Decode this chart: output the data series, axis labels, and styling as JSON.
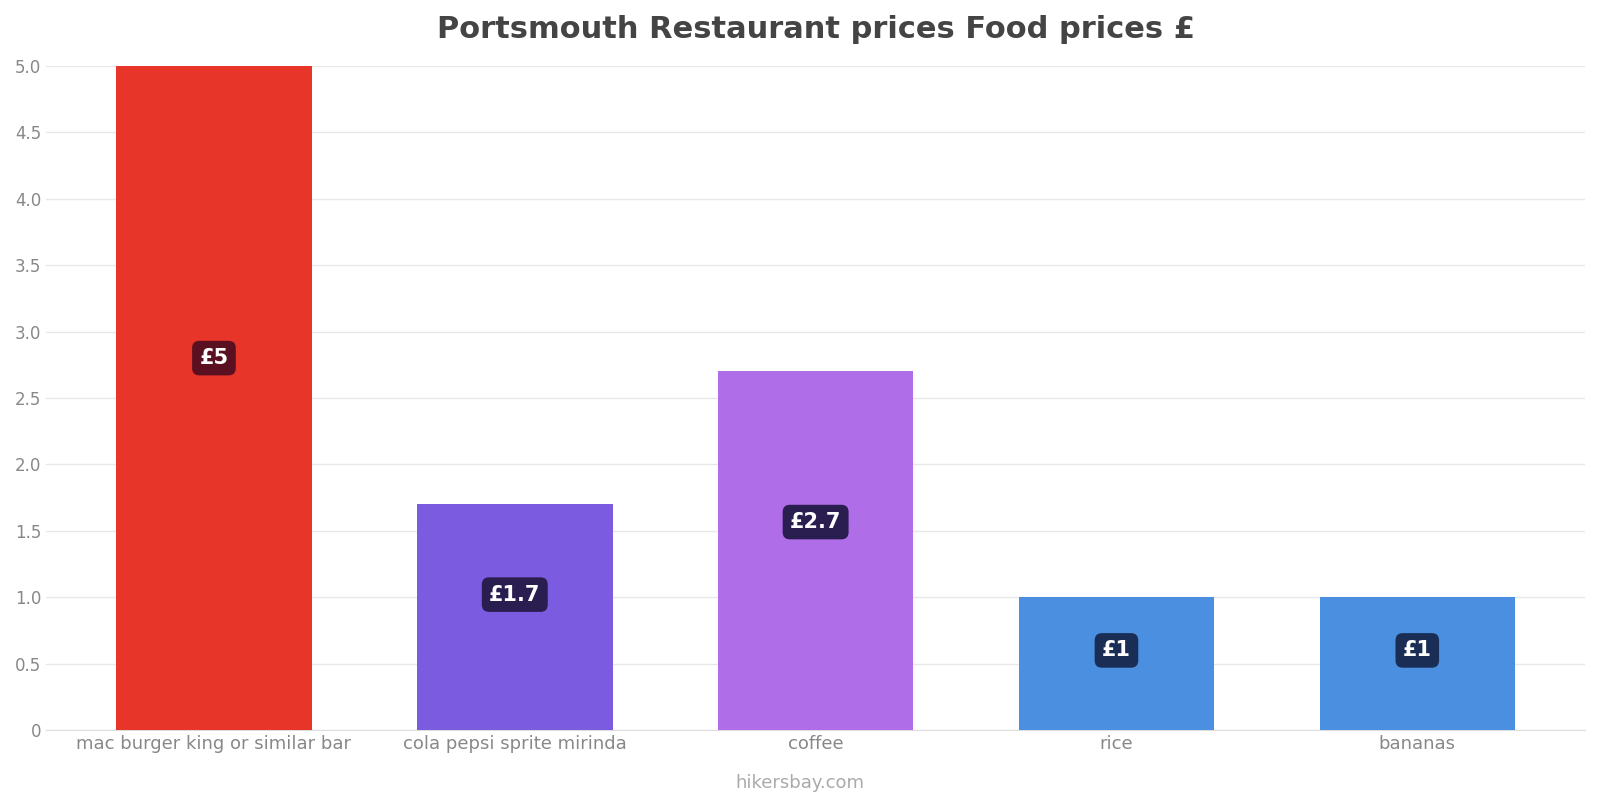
{
  "title": "Portsmouth Restaurant prices Food prices £",
  "categories": [
    "mac burger king or similar bar",
    "cola pepsi sprite mirinda",
    "coffee",
    "rice",
    "bananas"
  ],
  "values": [
    5.0,
    1.7,
    2.7,
    1.0,
    1.0
  ],
  "bar_colors": [
    "#e8352a",
    "#7b5ce0",
    "#b06de8",
    "#4a8fe0",
    "#4a8fe0"
  ],
  "label_texts": [
    "£5",
    "£1.7",
    "£2.7",
    "£1",
    "£1"
  ],
  "label_bg_colors": [
    "#5a1020",
    "#2a1e50",
    "#2a1e50",
    "#1a2d55",
    "#1a2d55"
  ],
  "ylim": [
    0,
    5.0
  ],
  "yticks": [
    0,
    0.5,
    1.0,
    1.5,
    2.0,
    2.5,
    3.0,
    3.5,
    4.0,
    4.5,
    5.0
  ],
  "watermark": "hikersbay.com",
  "title_fontsize": 22,
  "background_color": "#ffffff",
  "axes_background": "#ffffff"
}
